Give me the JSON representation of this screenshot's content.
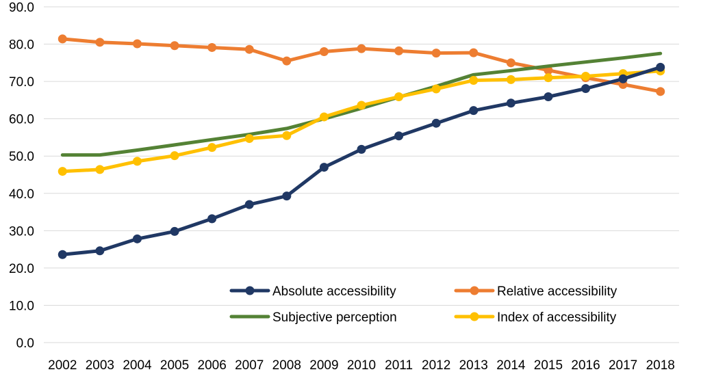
{
  "chart_data": {
    "type": "line",
    "title": "",
    "xlabel": "",
    "ylabel": "",
    "x": [
      "2002",
      "2003",
      "2004",
      "2005",
      "2006",
      "2007",
      "2008",
      "2009",
      "2010",
      "2011",
      "2012",
      "2013",
      "2014",
      "2015",
      "2016",
      "2017",
      "2018"
    ],
    "ylim": [
      0,
      90
    ],
    "yticks": [
      "0.0",
      "10.0",
      "20.0",
      "30.0",
      "40.0",
      "50.0",
      "60.0",
      "70.0",
      "80.0",
      "90.0"
    ],
    "grid": true,
    "legend_position": "bottom-right",
    "series": [
      {
        "name": "Absolute accessibility",
        "color": "#203864",
        "markers": true,
        "values": [
          23.6,
          24.6,
          27.8,
          29.8,
          33.2,
          37.0,
          39.3,
          47.0,
          51.8,
          55.4,
          58.8,
          62.2,
          64.2,
          65.9,
          68.1,
          70.7,
          73.8
        ]
      },
      {
        "name": "Relative accessibility",
        "color": "#ed7d31",
        "markers": true,
        "values": [
          81.4,
          80.5,
          80.1,
          79.6,
          79.1,
          78.6,
          75.5,
          78.0,
          78.8,
          78.2,
          77.6,
          77.7,
          75.0,
          73.0,
          71.0,
          69.2,
          67.3
        ]
      },
      {
        "name": "Subjective perception",
        "color": "#548235",
        "markers": false,
        "values": [
          50.3,
          50.3,
          51.6,
          53.0,
          54.4,
          55.8,
          57.4,
          60.0,
          62.8,
          65.8,
          68.7,
          71.8,
          72.9,
          74.1,
          75.2,
          76.3,
          77.5
        ]
      },
      {
        "name": "Index of accessibility",
        "color": "#ffc000",
        "markers": true,
        "values": [
          45.9,
          46.4,
          48.6,
          50.1,
          52.3,
          54.7,
          55.5,
          60.5,
          63.6,
          65.9,
          68.0,
          70.3,
          70.5,
          71.0,
          71.4,
          72.1,
          72.8
        ]
      }
    ]
  }
}
